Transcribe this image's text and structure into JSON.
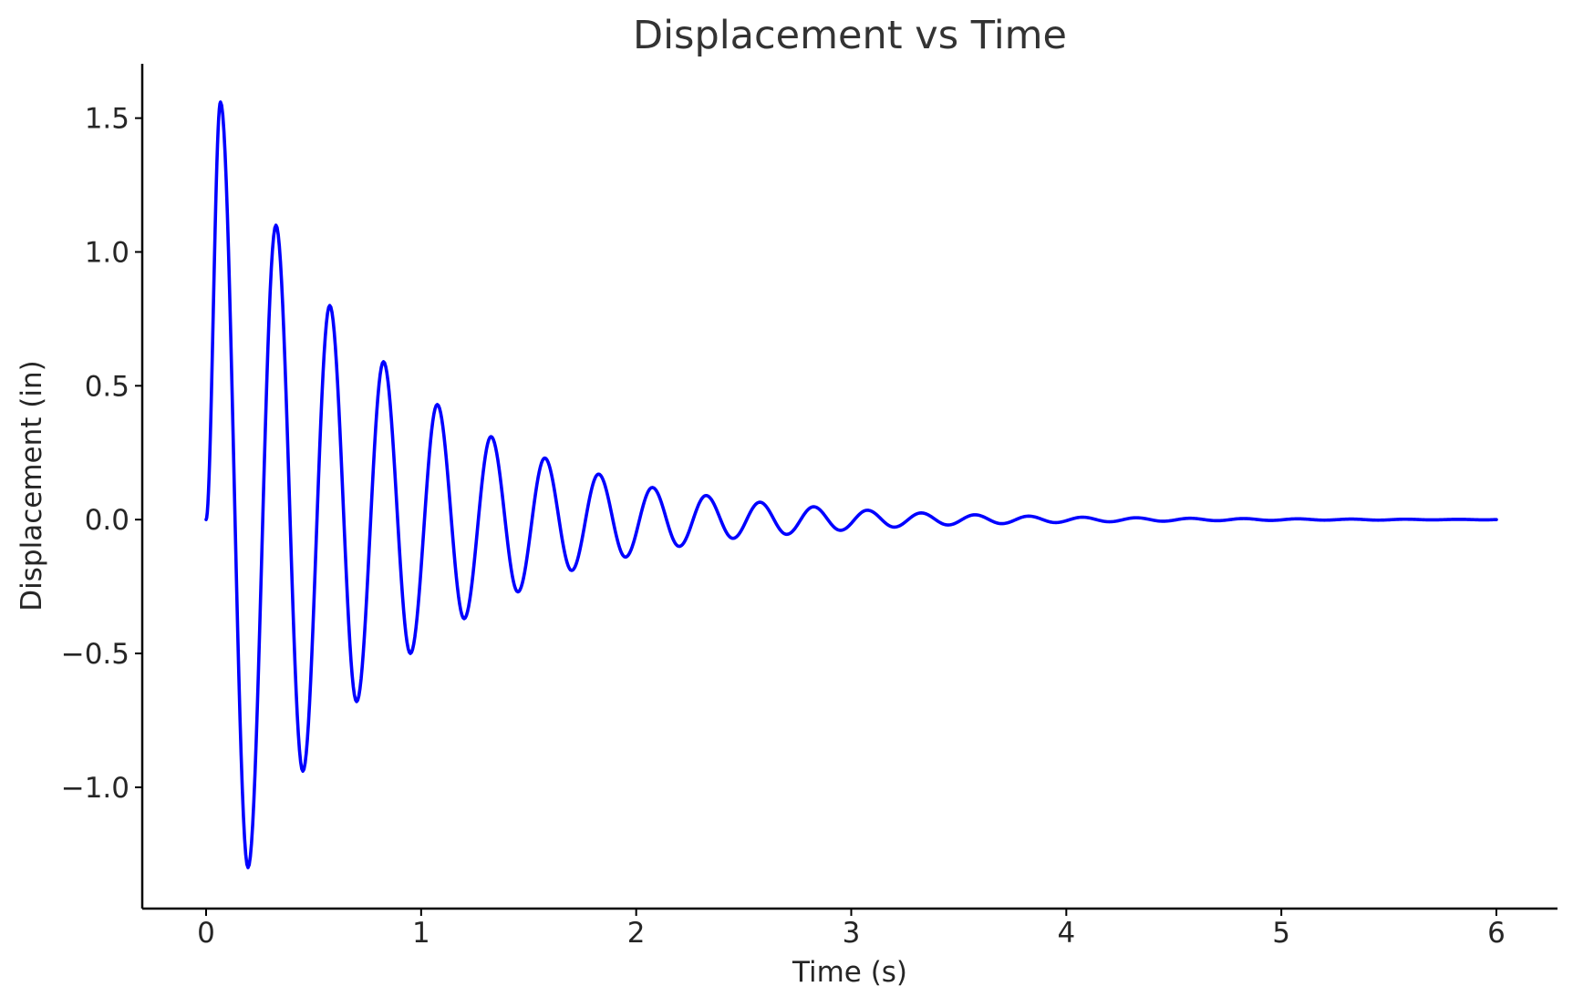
{
  "chart_data": {
    "type": "line",
    "title": "Displacement vs Time",
    "xlabel": "Time (s)",
    "ylabel": "Displacement (in)",
    "xlim": [
      -0.3,
      6.3
    ],
    "ylim": [
      -1.45,
      1.7
    ],
    "x_ticks": [
      0,
      1,
      2,
      3,
      4,
      5,
      6
    ],
    "x_tick_labels": [
      "0",
      "1",
      "2",
      "3",
      "4",
      "5",
      "6"
    ],
    "y_ticks": [
      -1.0,
      -0.5,
      0.0,
      0.5,
      1.0,
      1.5
    ],
    "y_tick_labels": [
      "−1.0",
      "−0.5",
      "0.0",
      "0.5",
      "1.0",
      "1.5"
    ],
    "grid": false,
    "legend": "none",
    "series": [
      {
        "color": "#0000ff",
        "x": [
          0.0,
          0.067,
          0.195,
          0.325,
          0.45,
          0.575,
          0.7,
          0.825,
          0.95,
          1.075,
          1.2,
          1.325,
          1.45,
          1.575,
          1.7,
          1.825,
          1.95,
          2.075,
          2.2,
          2.325,
          2.45,
          2.575,
          2.7,
          2.825,
          2.95,
          3.075,
          3.2,
          3.325,
          3.45,
          3.575,
          3.7,
          3.825,
          3.95,
          4.075,
          4.2,
          4.325,
          4.45,
          4.575,
          4.7,
          4.825,
          4.95,
          5.075,
          5.2,
          5.325,
          5.45,
          5.575,
          5.7,
          5.825,
          5.95,
          6.0
        ],
        "y": [
          0.0,
          1.56,
          -1.3,
          1.1,
          -0.94,
          0.8,
          -0.68,
          0.59,
          -0.5,
          0.43,
          -0.37,
          0.31,
          -0.27,
          0.23,
          -0.19,
          0.17,
          -0.14,
          0.12,
          -0.1,
          0.09,
          -0.07,
          0.065,
          -0.055,
          0.048,
          -0.04,
          0.035,
          -0.028,
          0.025,
          -0.02,
          0.018,
          -0.015,
          0.013,
          -0.011,
          0.009,
          -0.008,
          0.007,
          -0.006,
          0.005,
          -0.004,
          0.004,
          -0.003,
          0.003,
          -0.002,
          0.002,
          -0.002,
          0.0015,
          -0.001,
          0.001,
          -0.001,
          0.0
        ]
      }
    ]
  }
}
